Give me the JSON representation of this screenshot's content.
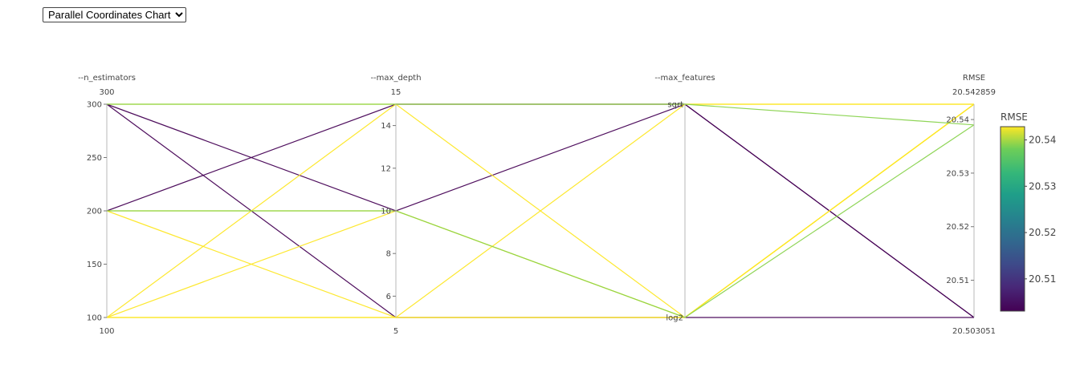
{
  "controls": {
    "chart_type_options": [
      "Parallel Coordinates Chart"
    ],
    "chart_type_selected": "Parallel Coordinates Chart"
  },
  "chart_data": {
    "type": "parallel_coordinates",
    "colorscale": "viridis",
    "color_by": "RMSE",
    "dimensions": [
      {
        "label": "--n_estimators",
        "kind": "numeric",
        "range": [
          100,
          300
        ],
        "ticks": [
          100,
          150,
          200,
          250,
          300
        ],
        "range_labels": [
          "100",
          "300"
        ]
      },
      {
        "label": "--max_depth",
        "kind": "numeric",
        "range": [
          5,
          15
        ],
        "ticks": [
          6,
          8,
          10,
          12,
          14
        ],
        "range_labels": [
          "5",
          "15"
        ]
      },
      {
        "label": "--max_features",
        "kind": "categorical",
        "categories": [
          "log2",
          "sqrt"
        ]
      },
      {
        "label": "RMSE",
        "kind": "numeric",
        "range": [
          20.503051,
          20.542859
        ],
        "ticks": [
          20.51,
          20.52,
          20.53,
          20.54
        ],
        "range_labels": [
          "20.503051",
          "20.542859"
        ]
      }
    ],
    "lines": [
      {
        "values": [
          300,
          15,
          "sqrt",
          20.542859
        ]
      },
      {
        "values": [
          300,
          10,
          "sqrt",
          20.503051
        ]
      },
      {
        "values": [
          300,
          5,
          "log2",
          20.503051
        ]
      },
      {
        "values": [
          200,
          15,
          "sqrt",
          20.503051
        ]
      },
      {
        "values": [
          200,
          10,
          "log2",
          20.542859
        ]
      },
      {
        "values": [
          200,
          5,
          "log2",
          20.542859
        ]
      },
      {
        "values": [
          100,
          15,
          "log2",
          20.542859
        ]
      },
      {
        "values": [
          100,
          10,
          "log2",
          20.542859
        ]
      },
      {
        "values": [
          100,
          5,
          "sqrt",
          20.542859
        ]
      },
      {
        "values": [
          100,
          5,
          "log2",
          20.542859
        ]
      },
      {
        "values": [
          300,
          15,
          "sqrt",
          20.539
        ]
      },
      {
        "values": [
          200,
          10,
          "log2",
          20.539
        ]
      }
    ],
    "colorbar": {
      "title": "RMSE",
      "ticks": [
        20.51,
        20.52,
        20.53,
        20.54
      ]
    }
  }
}
